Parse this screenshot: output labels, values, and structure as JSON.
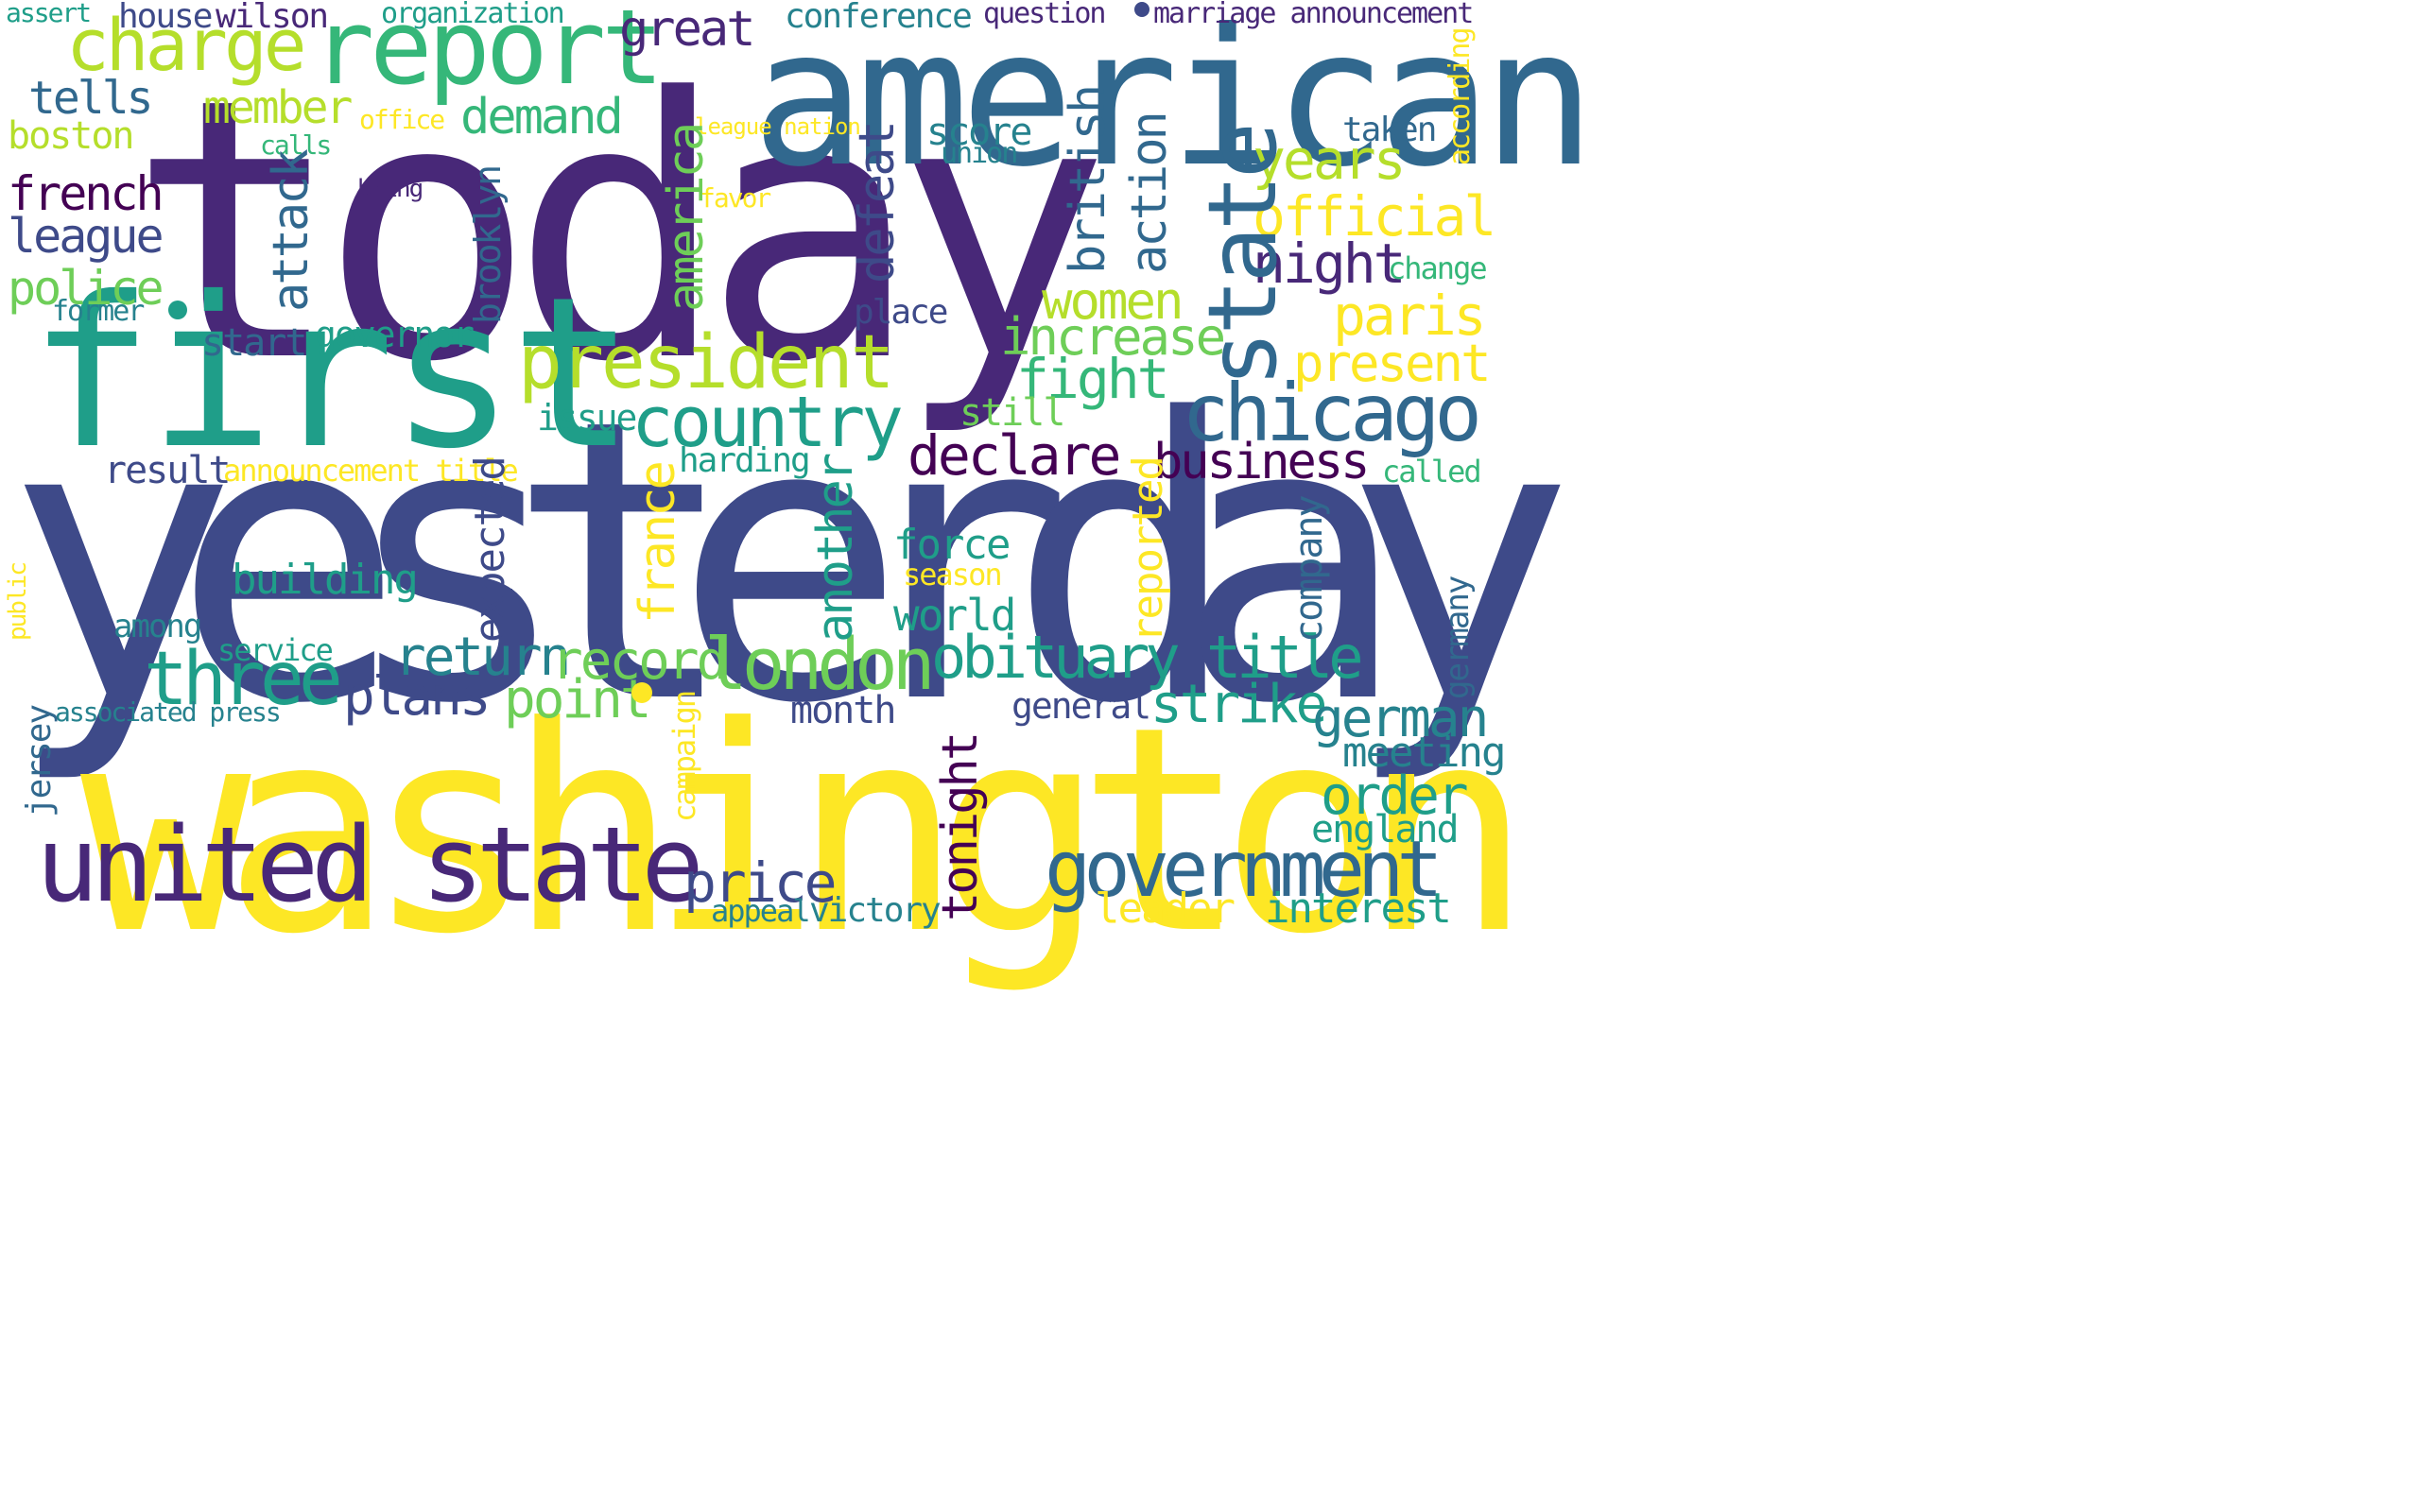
{
  "colors": {
    "c1": "#440154",
    "c2": "#482878",
    "c3": "#3e4a89",
    "c4": "#31688e",
    "c5": "#26828e",
    "c6": "#1f9e89",
    "c7": "#35b779",
    "c8": "#6ece58",
    "c9": "#b5de2b",
    "c10": "#fde725"
  },
  "words": {
    "w001": "today",
    "w002": "yesterday",
    "w003": "washington",
    "w004": "american",
    "w005": "first",
    "w006": "united state",
    "w007": "report",
    "w008": "charge",
    "w009": "state",
    "w010": "president",
    "w011": "chicago",
    "w012": "country",
    "w013": "three",
    "w014": "london",
    "w015": "government",
    "w016": "obituary title",
    "w017": "great",
    "w018": "conference",
    "w019": "organization",
    "w020": "question",
    "w021": "marriage announcement",
    "w022": "assert",
    "w023": "house",
    "w024": "wilson",
    "w025": "tells",
    "w026": "member",
    "w027": "demand",
    "w028": "office",
    "w029": "boston",
    "w030": "calls",
    "w031": "french",
    "w032": "bring",
    "w033": "league",
    "w034": "police",
    "w035": "former",
    "w036": "start",
    "w037": "governor",
    "w038": "league nation",
    "w039": "favor",
    "w040": "score",
    "w041": "union",
    "w042": "taken",
    "w043": "years",
    "w044": "official",
    "w045": "night",
    "w046": "change",
    "w047": "paris",
    "w048": "women",
    "w049": "increase",
    "w050": "place",
    "w051": "present",
    "w052": "fight",
    "w053": "still",
    "w054": "issue",
    "w055": "declare",
    "w056": "business",
    "w057": "harding",
    "w058": "called",
    "w059": "result",
    "w060": "announcement title",
    "w061": "force",
    "w062": "season",
    "w063": "building",
    "w064": "world",
    "w065": "among",
    "w066": "service",
    "w067": "return",
    "w068": "record",
    "w069": "associated press",
    "w070": "plans",
    "w071": "point",
    "w072": "month",
    "w073": "general",
    "w074": "strike",
    "w075": "german",
    "w076": "meeting",
    "w077": "order",
    "w078": "england",
    "w079": "price",
    "w080": "appeal",
    "w081": "victory",
    "w082": "leader",
    "w083": "interest",
    "w084": "attack",
    "w085": "brooklyn",
    "w086": "america",
    "w087": "defeat",
    "w088": "british",
    "w089": "action",
    "w090": "according",
    "w091": "france",
    "w092": "another",
    "w093": "expected",
    "w094": "reported",
    "w095": "company",
    "w096": "germany",
    "w097": "public",
    "w098": "campaign",
    "w099": "jersey",
    "w100": "tonight"
  }
}
